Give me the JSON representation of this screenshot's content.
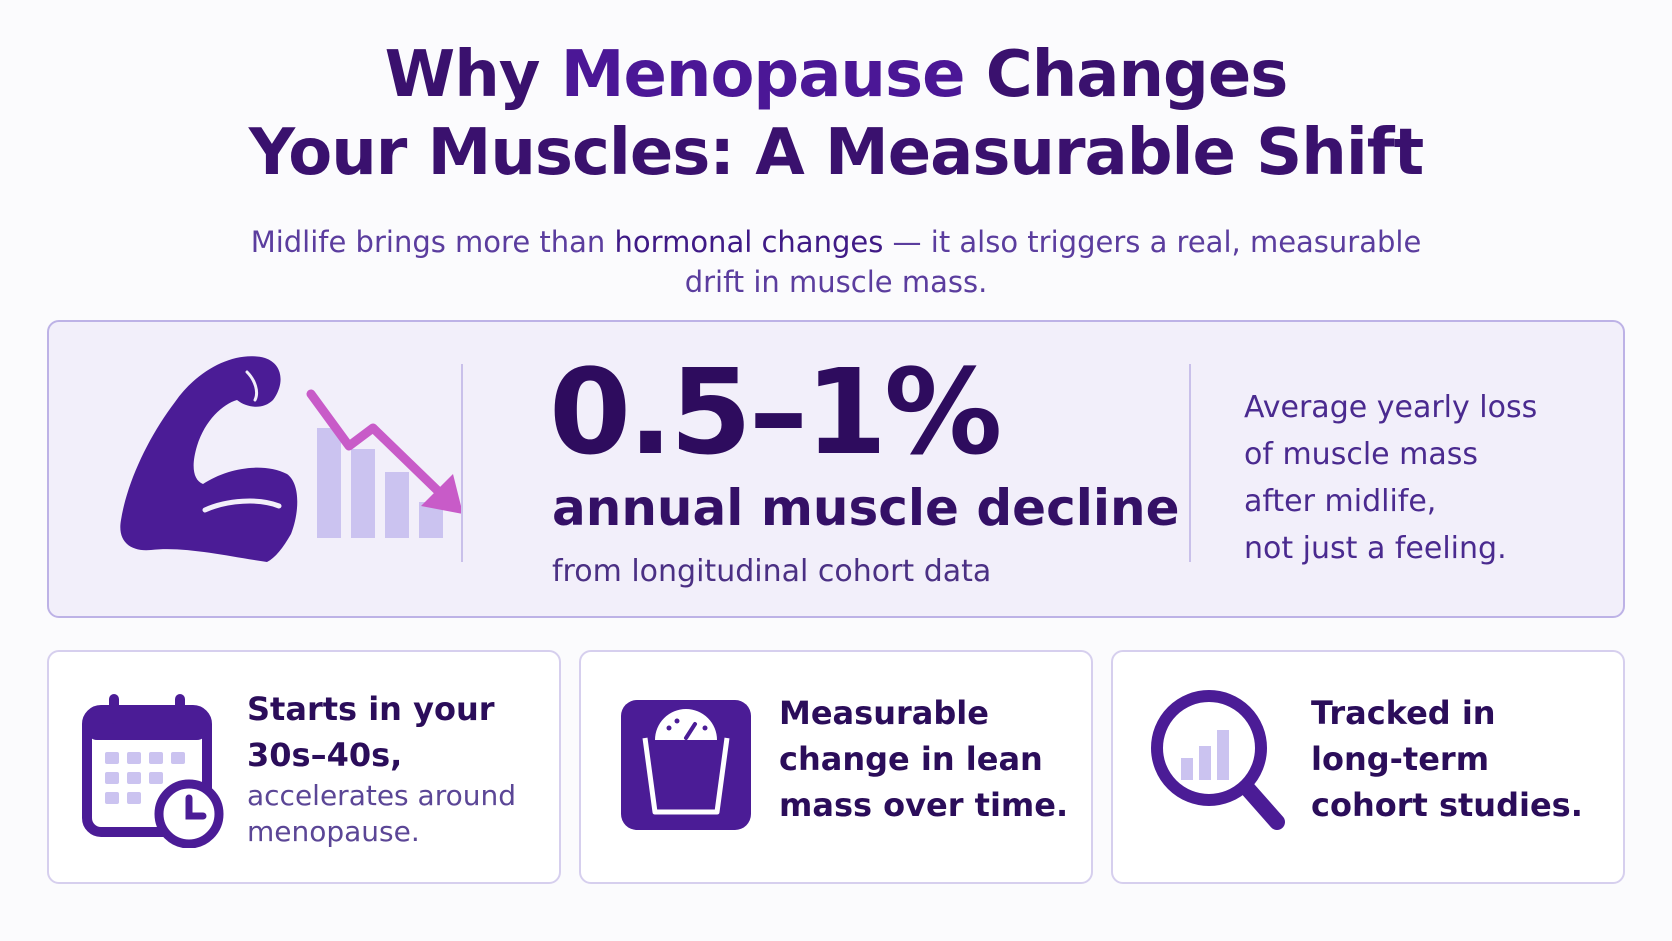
{
  "header": {
    "title_line1_a": "Why ",
    "title_line1_b": "Menopause",
    "title_line1_c": " Changes",
    "title_line2": "Your Muscles: A Measurable Shift",
    "subtitle_a": "Midlife brings more than ",
    "subtitle_em": "hormonal changes",
    "subtitle_b": " — it also triggers a real, measurable",
    "subtitle_line2": "drift in muscle mass."
  },
  "hero": {
    "stat": "0.5–1%",
    "stat_label": "annual muscle decline",
    "stat_source": "from longitudinal cohort data",
    "right_lines": [
      "Average yearly loss",
      "of muscle mass",
      "after midlife,",
      "not just a feeling."
    ],
    "icon": "flexed-arm-with-declining-bar-chart-icon"
  },
  "cards": [
    {
      "icon": "calendar-clock-icon",
      "bold_lines": [
        "Starts in your",
        "30s–40s,"
      ],
      "light_lines": [
        "accelerates around",
        "menopause."
      ]
    },
    {
      "icon": "bathroom-scale-icon",
      "bold_lines": [
        "Measurable",
        "change in lean",
        "mass over time."
      ],
      "light_lines": []
    },
    {
      "icon": "magnifier-bar-chart-icon",
      "bold_lines": [
        "Tracked in",
        "long-term",
        "cohort studies."
      ],
      "light_lines": []
    }
  ],
  "colors": {
    "primary": "#4b1c96",
    "dark": "#2e0c5e",
    "accent_pink": "#c85bc8",
    "light_bar": "#cbc3f0",
    "hero_bg": "#f2effa"
  }
}
